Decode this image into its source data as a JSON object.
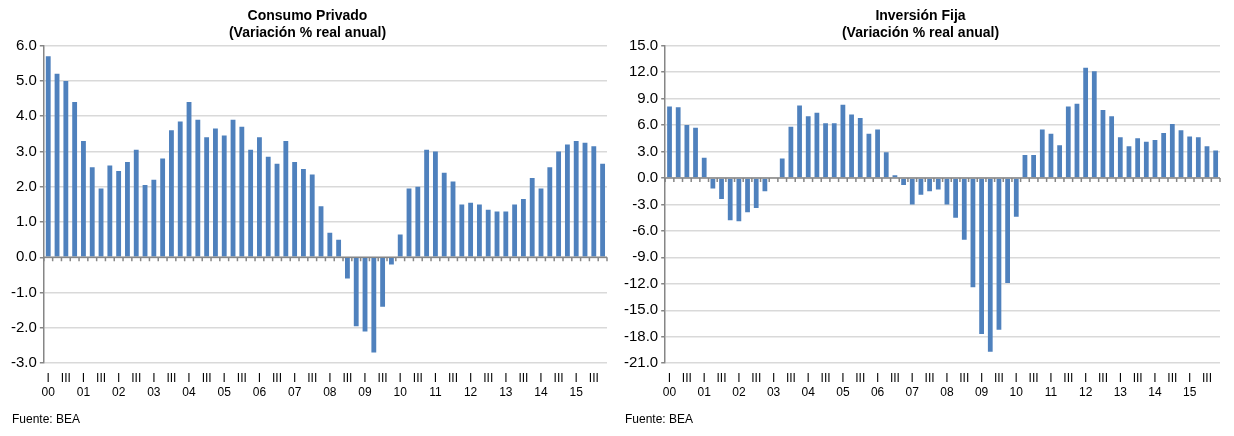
{
  "chart_data": [
    {
      "type": "bar",
      "title": "Consumo Privado\n(Variación % real anual)",
      "categories": [
        "I\n00",
        null,
        "III",
        null,
        "I\n01",
        null,
        "III",
        null,
        "I\n02",
        null,
        "III",
        null,
        "I\n03",
        null,
        "III",
        null,
        "I\n04",
        null,
        "III",
        null,
        "I\n05",
        null,
        "III",
        null,
        "I\n06",
        null,
        "III",
        null,
        "I\n07",
        null,
        "III",
        null,
        "I\n08",
        null,
        "III",
        null,
        "I\n09",
        null,
        "III",
        null,
        "I\n10",
        null,
        "III",
        null,
        "I\n11",
        null,
        "III",
        null,
        "I\n12",
        null,
        "III",
        null,
        "I\n13",
        null,
        "III",
        null,
        "I\n14",
        null,
        "III",
        null,
        "I\n15",
        null,
        "III",
        null
      ],
      "values": [
        5.7,
        5.2,
        5.0,
        4.4,
        3.3,
        2.55,
        1.95,
        2.6,
        2.45,
        2.7,
        3.05,
        2.05,
        2.2,
        2.8,
        3.6,
        3.85,
        4.4,
        3.9,
        3.4,
        3.65,
        3.45,
        3.9,
        3.7,
        3.05,
        3.4,
        2.85,
        2.65,
        3.3,
        2.7,
        2.5,
        2.35,
        1.45,
        0.7,
        0.5,
        -0.6,
        -1.95,
        -2.1,
        -2.7,
        -1.4,
        -0.2,
        0.65,
        1.95,
        2.0,
        3.05,
        3.0,
        2.4,
        2.15,
        1.5,
        1.55,
        1.5,
        1.35,
        1.3,
        1.3,
        1.5,
        1.65,
        2.25,
        1.95,
        2.55,
        3.0,
        3.2,
        3.3,
        3.25,
        3.15,
        2.65
      ],
      "color": "#4f81bd",
      "ylim": [
        -3,
        6
      ],
      "yticks": [
        {
          "value": -3,
          "label": "-3.0"
        },
        {
          "value": -2,
          "label": "-2.0"
        },
        {
          "value": -1,
          "label": "-1.0"
        },
        {
          "value": 0,
          "label": "0.0"
        },
        {
          "value": 1,
          "label": "1.0"
        },
        {
          "value": 2,
          "label": "2.0"
        },
        {
          "value": 3,
          "label": "3.0"
        },
        {
          "value": 4,
          "label": "4.0"
        },
        {
          "value": 5,
          "label": "5.0"
        },
        {
          "value": 6,
          "label": "6.0"
        }
      ],
      "grid": "y",
      "annotations": [
        "Fuente: BEA"
      ]
    },
    {
      "type": "bar",
      "title": "Inversión Fija\n(Variación % real anual)",
      "categories": [
        "I\n00",
        null,
        "III",
        null,
        "I\n01",
        null,
        "III",
        null,
        "I\n02",
        null,
        "III",
        null,
        "I\n03",
        null,
        "III",
        null,
        "I\n04",
        null,
        "III",
        null,
        "I\n05",
        null,
        "III",
        null,
        "I\n06",
        null,
        "III",
        null,
        "I\n07",
        null,
        "III",
        null,
        "I\n08",
        null,
        "III",
        null,
        "I\n09",
        null,
        "III",
        null,
        "I\n10",
        null,
        "III",
        null,
        "I\n11",
        null,
        "III",
        null,
        "I\n12",
        null,
        "III",
        null,
        "I\n13",
        null,
        "III",
        null,
        "I\n14",
        null,
        "III",
        null,
        "I\n15",
        null,
        "III",
        null
      ],
      "values": [
        8.1,
        8.0,
        6.0,
        5.7,
        2.3,
        -1.2,
        -2.4,
        -4.8,
        -4.9,
        -3.9,
        -3.4,
        -1.5,
        0.0,
        2.2,
        5.8,
        8.2,
        7.0,
        7.4,
        6.2,
        6.2,
        8.3,
        7.2,
        6.8,
        5.0,
        5.5,
        2.9,
        0.3,
        -0.8,
        -3.0,
        -1.9,
        -1.5,
        -1.3,
        -3.0,
        -4.5,
        -7.0,
        -12.4,
        -17.7,
        -19.7,
        -17.2,
        -11.9,
        -4.4,
        2.6,
        2.6,
        5.5,
        5.0,
        3.7,
        8.1,
        8.4,
        12.5,
        12.1,
        7.7,
        7.0,
        4.6,
        3.6,
        4.5,
        4.1,
        4.3,
        5.1,
        6.1,
        5.4,
        4.7,
        4.6,
        3.6,
        3.1
      ],
      "color": "#4f81bd",
      "ylim": [
        -21,
        15
      ],
      "yticks": [
        {
          "value": -21,
          "label": "-21.0"
        },
        {
          "value": -18,
          "label": "-18.0"
        },
        {
          "value": -15,
          "label": "-15.0"
        },
        {
          "value": -12,
          "label": "-12.0"
        },
        {
          "value": -9,
          "label": "-9.0"
        },
        {
          "value": -6,
          "label": "-6.0"
        },
        {
          "value": -3,
          "label": "-3.0"
        },
        {
          "value": 0,
          "label": "0.0"
        },
        {
          "value": 3,
          "label": "3.0"
        },
        {
          "value": 6,
          "label": "6.0"
        },
        {
          "value": 9,
          "label": "9.0"
        },
        {
          "value": 12,
          "label": "12.0"
        },
        {
          "value": 15,
          "label": "15.0"
        }
      ],
      "grid": "y",
      "annotations": [
        "Fuente: BEA"
      ]
    }
  ]
}
